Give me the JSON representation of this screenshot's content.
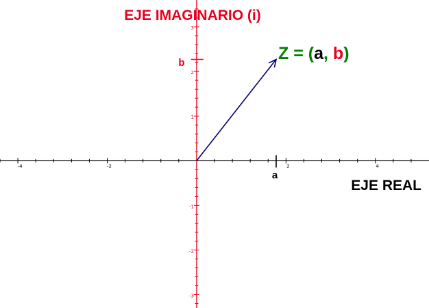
{
  "labels": {
    "imag_axis_title": "EJE IMAGINARIO (i)",
    "real_axis_title": "EJE REAL",
    "b_label": "b",
    "a_label": "a",
    "z_formula": {
      "prefix": "Z = (",
      "a": "a",
      "comma": ", ",
      "b": "b",
      "suffix": ")"
    }
  },
  "colors": {
    "real_axis": "#000000",
    "imag_axis": "#e8001c",
    "vector": "#00007a",
    "z_green": "#008000",
    "label_red": "#e8001c",
    "label_black": "#000000"
  },
  "axes": {
    "x_ticks": [
      -4,
      -2,
      2,
      4
    ],
    "y_ticks": [
      -3,
      -2,
      -1,
      1,
      2,
      3
    ],
    "x_range": [
      -4.4,
      5.2
    ],
    "y_range": [
      -3.3,
      3.6
    ]
  },
  "vector": {
    "a": 1.78,
    "b": 2.27
  }
}
